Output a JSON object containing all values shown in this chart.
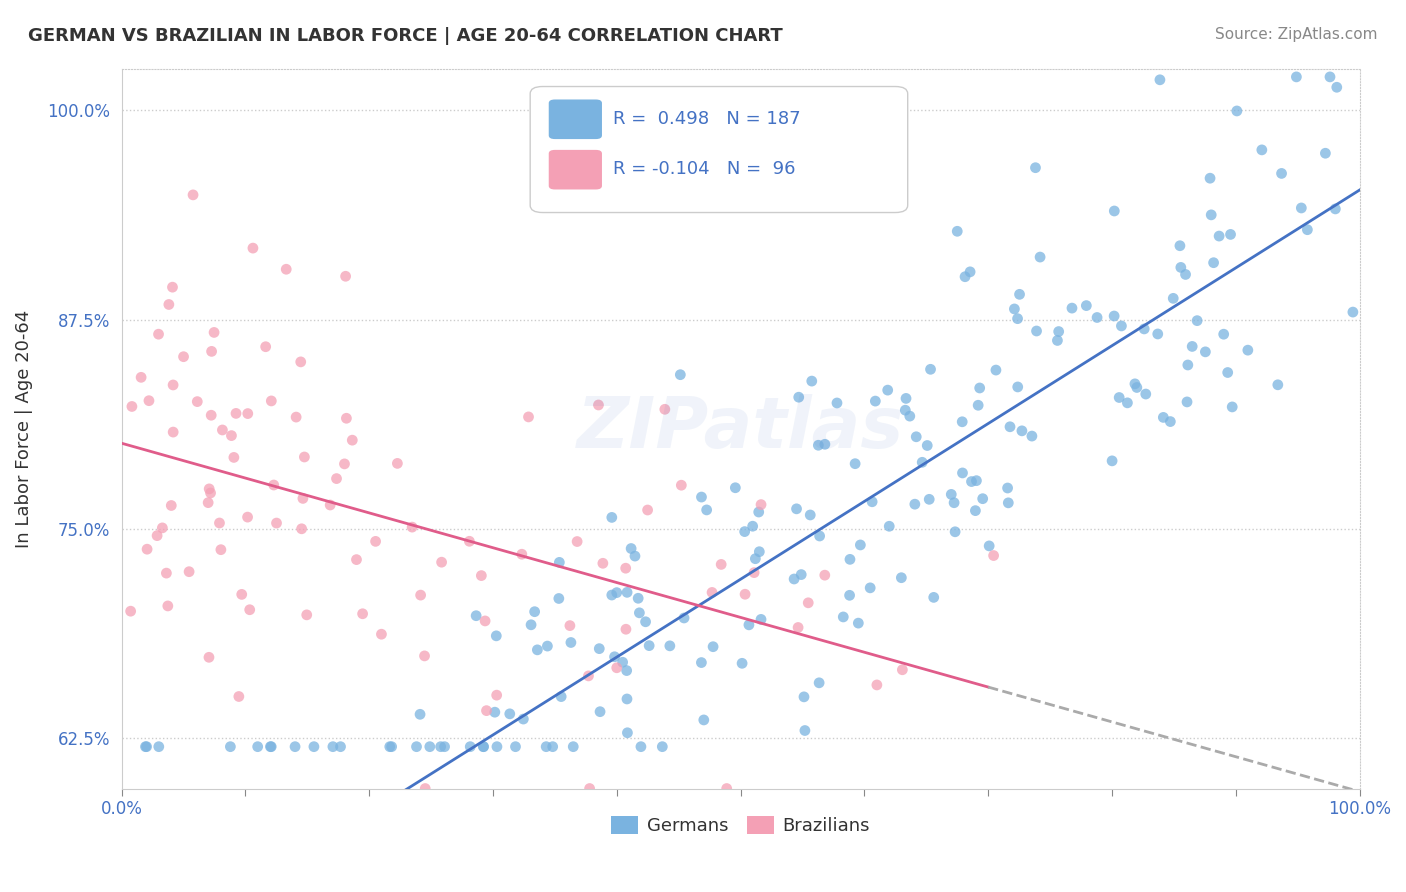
{
  "title": "GERMAN VS BRAZILIAN IN LABOR FORCE | AGE 20-64 CORRELATION CHART",
  "source": "Source: ZipAtlas.com",
  "ylabel": "In Labor Force | Age 20-64",
  "xlim": [
    0.0,
    1.0
  ],
  "ylim": [
    0.595,
    1.025
  ],
  "yticks": [
    0.625,
    0.75,
    0.875,
    1.0
  ],
  "ytick_labels": [
    "62.5%",
    "75.0%",
    "87.5%",
    "100.0%"
  ],
  "xtick_positions": [
    0.0,
    0.1,
    0.2,
    0.3,
    0.4,
    0.5,
    0.6,
    0.7,
    0.8,
    0.9,
    1.0
  ],
  "xtick_labels": [
    "0.0%",
    "",
    "",
    "",
    "",
    "",
    "",
    "",
    "",
    "",
    "100.0%"
  ],
  "german_color": "#7ab3e0",
  "brazilian_color": "#f4a0b5",
  "trendline_german_color": "#4472c4",
  "trendline_brazilian_color": "#e05c8a",
  "trendline_dashed_color": "#aaaaaa",
  "r_german": 0.498,
  "n_german": 187,
  "r_brazilian": -0.104,
  "n_brazilian": 96,
  "watermark": "ZIPatlas",
  "legend_color": "#4472c4",
  "dot_alpha": 0.75,
  "dot_size": 60,
  "german_seed": 42,
  "brazilian_seed": 99
}
